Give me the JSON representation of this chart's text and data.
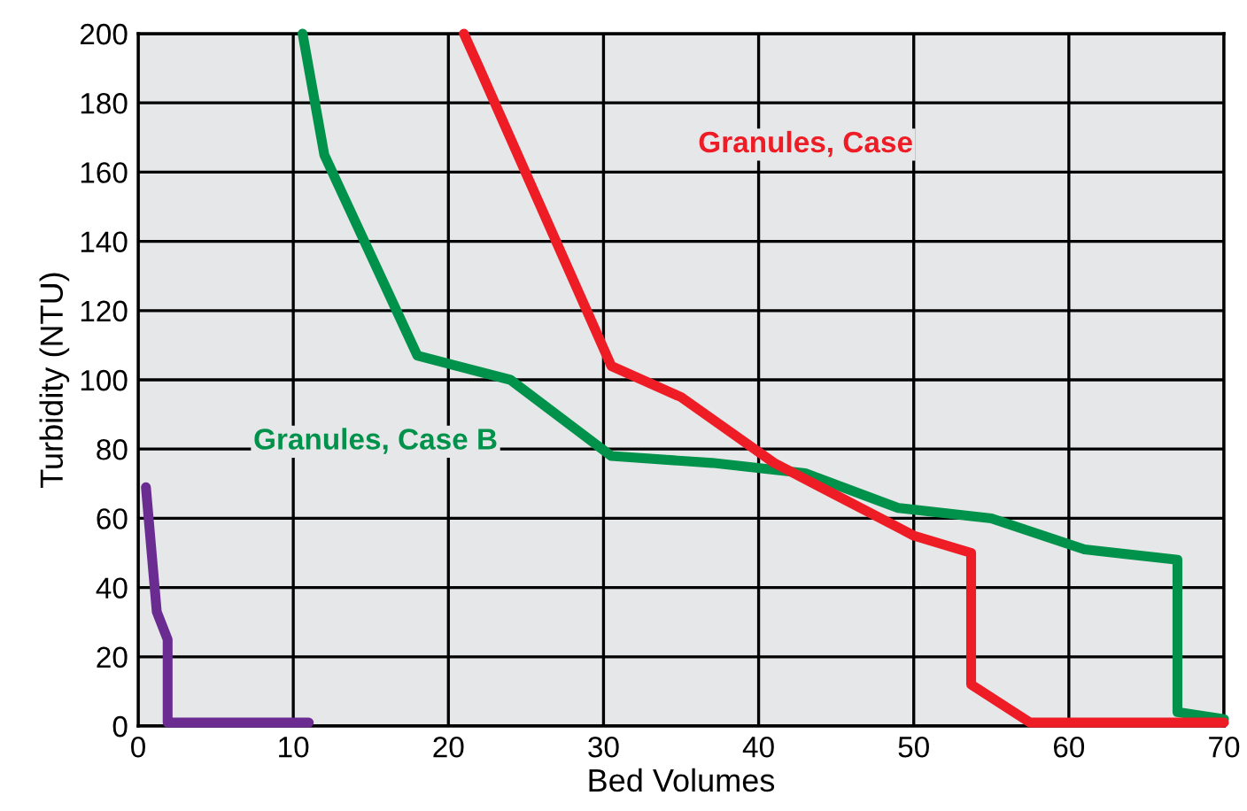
{
  "chart_data": {
    "type": "line",
    "xlabel": "Bed Volumes",
    "ylabel": "Turbidity (NTU)",
    "xlim": [
      0,
      70
    ],
    "ylim": [
      0,
      200
    ],
    "xticks": [
      0,
      10,
      20,
      30,
      40,
      50,
      60,
      70
    ],
    "yticks": [
      0,
      20,
      40,
      60,
      80,
      100,
      120,
      140,
      160,
      180,
      200
    ],
    "grid": true,
    "marker": "none",
    "line_style": "solid",
    "series": [
      {
        "name": "Granules, Case B",
        "color": "#00924a",
        "x": [
          10.6,
          12,
          18,
          24,
          30.5,
          37,
          43,
          49,
          55,
          61,
          67,
          67,
          70
        ],
        "values": [
          200,
          165,
          107,
          100,
          78,
          76,
          73,
          63,
          60,
          51,
          48,
          4,
          2
        ]
      },
      {
        "name": "Granules, Case",
        "color": "#ee1c25",
        "x": [
          21,
          22,
          30.5,
          35,
          41,
          44,
          50,
          53.7,
          53.7,
          57.5,
          70
        ],
        "values": [
          200,
          190,
          104,
          95,
          76,
          69,
          55,
          50,
          12,
          1,
          1
        ]
      },
      {
        "color": "#6a2c91",
        "x": [
          0.5,
          1.2,
          1.9,
          1.9,
          11
        ],
        "values": [
          69,
          33,
          25,
          1,
          1
        ]
      }
    ]
  }
}
